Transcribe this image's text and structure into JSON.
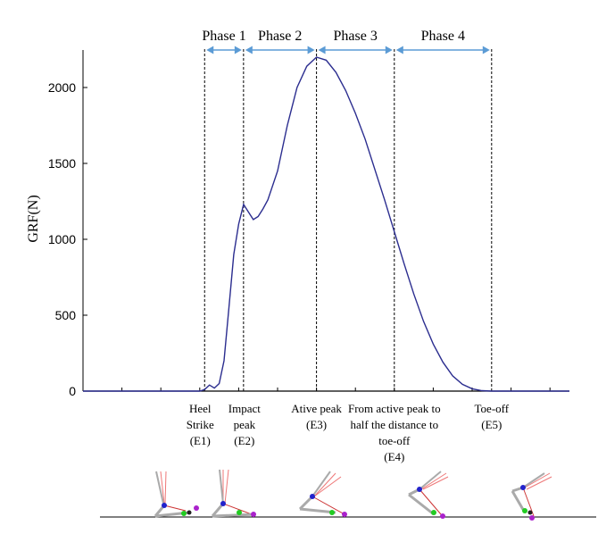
{
  "chart_data": {
    "type": "line",
    "ylabel": "GRF(N)",
    "ylim": [
      0,
      2250
    ],
    "yticks": [
      "0",
      "500",
      "1000",
      "1500",
      "2000"
    ],
    "grid": false,
    "series": [
      {
        "color": "#2b2d8f",
        "x": [
          0,
          10,
          20,
          24,
          25,
          26,
          27,
          28,
          29,
          30,
          31,
          32,
          33,
          34,
          35,
          36,
          37,
          38,
          40,
          42,
          44,
          46,
          48,
          50,
          52,
          54,
          56,
          58,
          60,
          62,
          64,
          66,
          68,
          70,
          72,
          74,
          76,
          78,
          80,
          82,
          84,
          86,
          88,
          90,
          92,
          94,
          96,
          98,
          100
        ],
        "y": [
          0,
          0,
          0,
          0,
          10,
          40,
          20,
          50,
          200,
          550,
          900,
          1100,
          1230,
          1180,
          1130,
          1150,
          1200,
          1260,
          1450,
          1750,
          2000,
          2140,
          2200,
          2180,
          2100,
          1980,
          1830,
          1660,
          1460,
          1260,
          1050,
          840,
          640,
          460,
          310,
          190,
          100,
          45,
          15,
          3,
          0,
          0,
          0,
          0,
          0,
          0,
          0,
          0,
          0
        ]
      }
    ],
    "phases": [
      "Phase 1",
      "Phase 2",
      "Phase 3",
      "Phase 4"
    ],
    "events": [
      {
        "id": "E1",
        "lines": [
          "Heel",
          "Strike",
          "(E1)"
        ]
      },
      {
        "id": "E2",
        "lines": [
          "Impact",
          "peak",
          "(E2)"
        ]
      },
      {
        "id": "E3",
        "lines": [
          "Ative peak",
          "(E3)"
        ]
      },
      {
        "id": "E4",
        "lines": [
          "From active peak to",
          "half the distance to",
          "toe-off",
          "(E4)"
        ]
      },
      {
        "id": "E5",
        "lines": [
          "Toe-off",
          "(E5)"
        ]
      }
    ],
    "event_x": [
      25,
      33,
      48,
      64,
      84
    ],
    "arrow_color": "#5b9bd5"
  }
}
